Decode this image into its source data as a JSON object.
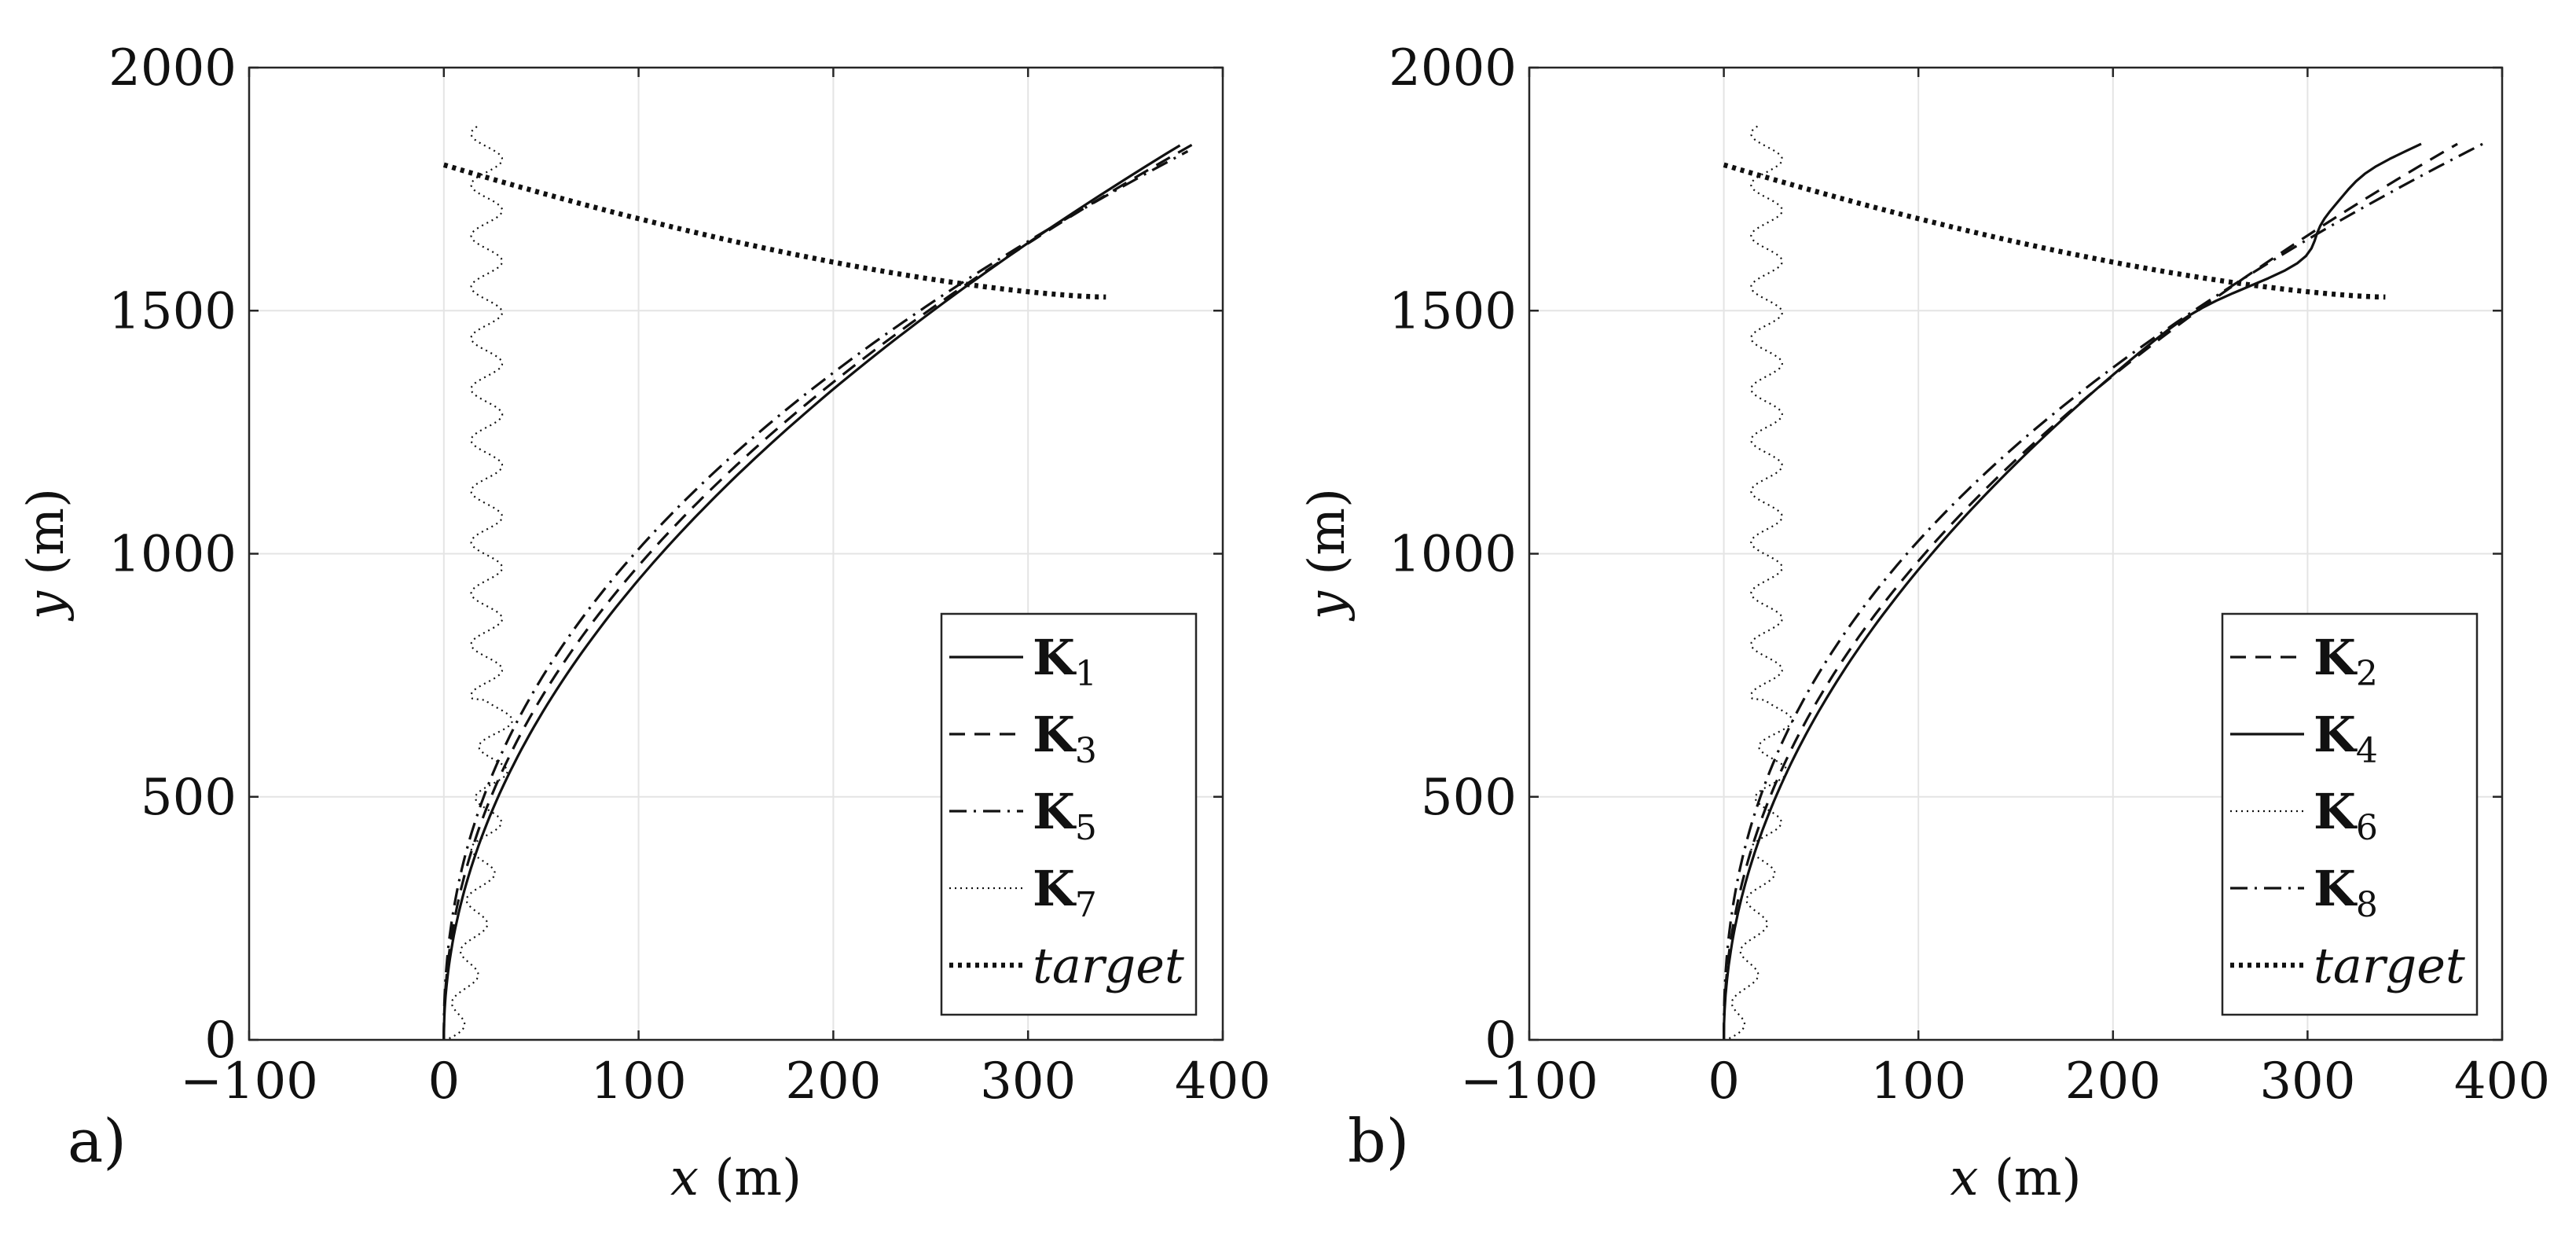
{
  "chart_data": [
    {
      "type": "line",
      "panel_label": "a)",
      "xlabel_var": "x",
      "xlabel_unit": "(m)",
      "ylabel_var": "y",
      "ylabel_unit": "(m)",
      "xlim": [
        -100,
        400
      ],
      "ylim": [
        0,
        2000
      ],
      "xticks": [
        -100,
        0,
        100,
        200,
        300,
        400
      ],
      "yticks": [
        0,
        500,
        1000,
        1500,
        2000
      ],
      "xtick_labels": [
        "−100",
        "0",
        "100",
        "200",
        "300",
        "400"
      ],
      "ytick_labels": [
        "0",
        "500",
        "1000",
        "1500",
        "2000"
      ],
      "grid": true,
      "legend_position": "bottom-right",
      "series": [
        {
          "name": "K",
          "sub": "1",
          "style": "solid",
          "shape": "trajectory",
          "end_x": 378,
          "end_y": 1840,
          "bend": 0.5
        },
        {
          "name": "K",
          "sub": "3",
          "style": "dashed",
          "shape": "trajectory",
          "end_x": 385,
          "end_y": 1843,
          "bend": 0.472
        },
        {
          "name": "K",
          "sub": "5",
          "style": "dashdot",
          "shape": "trajectory",
          "end_x": 382,
          "end_y": 1828,
          "bend": 0.443
        },
        {
          "name": "K",
          "sub": "7",
          "style": "dotted",
          "shape": "weave",
          "end_x": 28,
          "end_y": 1880,
          "amplitude": 8,
          "period": 105
        },
        {
          "name": "target",
          "sub": "",
          "style": "thickdotted",
          "shape": "target",
          "x0": 0,
          "y0": 1800,
          "x1": 340,
          "y1": 1528,
          "curvature": 0.5
        }
      ]
    },
    {
      "type": "line",
      "panel_label": "b)",
      "xlabel_var": "x",
      "xlabel_unit": "(m)",
      "ylabel_var": "y",
      "ylabel_unit": "(m)",
      "xlim": [
        -100,
        400
      ],
      "ylim": [
        0,
        2000
      ],
      "xticks": [
        -100,
        0,
        100,
        200,
        300,
        400
      ],
      "yticks": [
        0,
        500,
        1000,
        1500,
        2000
      ],
      "xtick_labels": [
        "−100",
        "0",
        "100",
        "200",
        "300",
        "400"
      ],
      "ytick_labels": [
        "0",
        "500",
        "1000",
        "1500",
        "2000"
      ],
      "grid": true,
      "legend_position": "bottom-right",
      "series": [
        {
          "name": "K",
          "sub": "2",
          "style": "dashed",
          "shape": "trajectory",
          "end_x": 377,
          "end_y": 1843,
          "bend": 0.472
        },
        {
          "name": "K",
          "sub": "4",
          "style": "solid",
          "shape": "trajectory",
          "end_x": 363,
          "end_y": 1843,
          "bend": 0.5,
          "kink": true
        },
        {
          "name": "K",
          "sub": "6",
          "style": "dotted",
          "shape": "weave",
          "end_x": 28,
          "end_y": 1880,
          "amplitude": 8,
          "period": 105
        },
        {
          "name": "K",
          "sub": "8",
          "style": "dashdot",
          "shape": "trajectory",
          "end_x": 390,
          "end_y": 1843,
          "bend": 0.43
        },
        {
          "name": "target",
          "sub": "",
          "style": "thickdotted",
          "shape": "target",
          "x0": 0,
          "y0": 1800,
          "x1": 340,
          "y1": 1528,
          "curvature": 0.5
        }
      ]
    }
  ]
}
